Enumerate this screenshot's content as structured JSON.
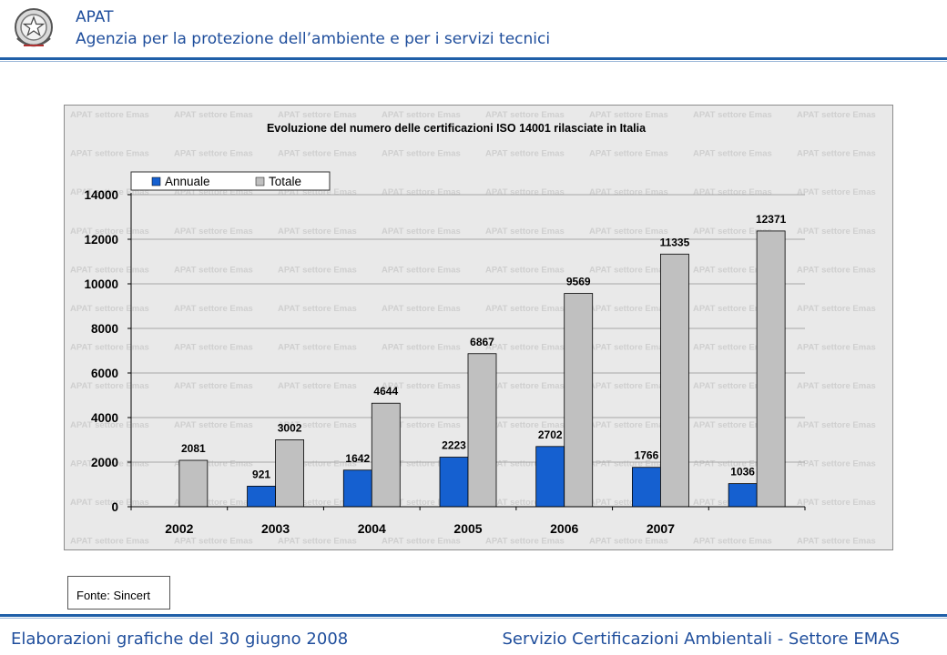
{
  "header": {
    "org_name": "APAT",
    "org_full_name": "Agenzia per la protezione dell’ambiente e per i servizi tecnici"
  },
  "watermark_text": "APAT settore Emas",
  "source_label": "Fonte: Sincert",
  "footer": {
    "left": "Elaborazioni grafiche del 30 giugno 2008",
    "right": "Servizio Certificazioni Ambientali - Settore EMAS"
  },
  "colors": {
    "annuale": "#1560d0",
    "totale": "#c0c0c0",
    "brand": "#1f4e9c"
  },
  "chart_data": {
    "type": "bar",
    "title": "Evoluzione del numero delle certificazioni ISO 14001 rilasciate in Italia",
    "categories": [
      "2002",
      "2003",
      "2004",
      "2005",
      "2006",
      "2007",
      ""
    ],
    "series": [
      {
        "name": "Annuale",
        "values": [
          null,
          921,
          1642,
          2223,
          2702,
          1766,
          1036
        ]
      },
      {
        "name": "Totale",
        "values": [
          2081,
          3002,
          4644,
          6867,
          9569,
          11335,
          12371
        ]
      }
    ],
    "ylim": [
      0,
      14000
    ],
    "yticks": [
      0,
      2000,
      4000,
      6000,
      8000,
      10000,
      12000,
      14000
    ],
    "legend_position": "top-left",
    "grid": true
  }
}
